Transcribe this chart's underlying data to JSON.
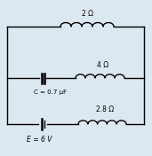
{
  "bg_color": "#dce8f0",
  "wire_color": "#000000",
  "fig_width": 1.71,
  "fig_height": 1.76,
  "dpi": 100,
  "resistor_2_label": "2 Ω",
  "resistor_4_label": "4 Ω",
  "resistor_28_label": "2.8 Ω",
  "cap_label": "C = 0.7 μF",
  "emf_label": "E = 6 V",
  "font_size": 5.5,
  "lw": 1.0
}
